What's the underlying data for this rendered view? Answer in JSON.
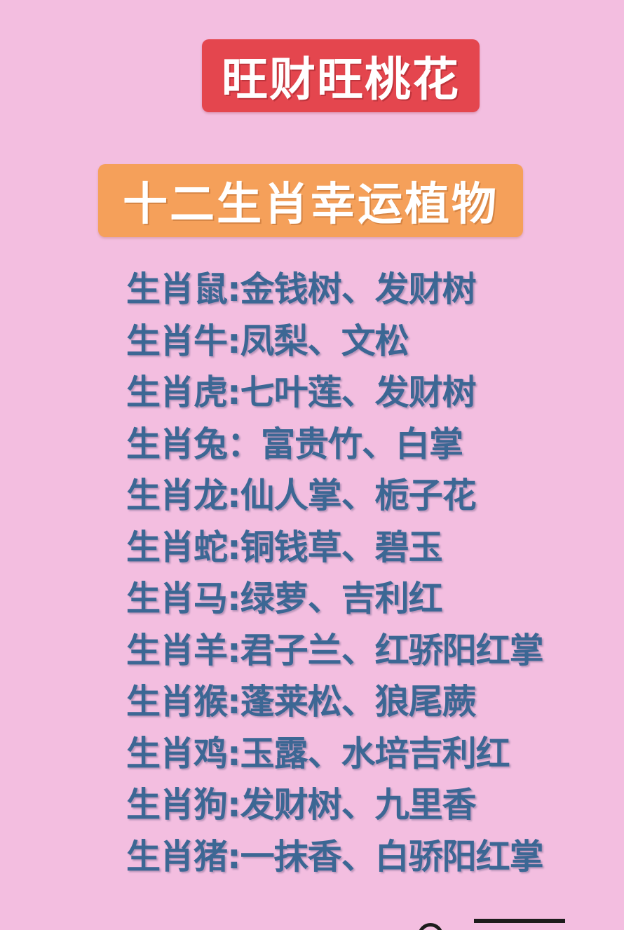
{
  "title": "旺财旺桃花",
  "subtitle": "十二生肖幸运植物",
  "zodiac_items": [
    "生肖鼠:金钱树、发财树",
    "生肖牛:凤梨、文松",
    "生肖虎:七叶莲、发财树",
    "生肖兔：富贵竹、白掌",
    "生肖龙:仙人掌、栀子花",
    "生肖蛇:铜钱草、碧玉",
    "生肖马:绿萝、吉利红",
    "生肖羊:君子兰、红骄阳红掌",
    "生肖猴:蓬莱松、狼尾蕨",
    "生肖鸡:玉露、水培吉利红",
    "生肖狗:发财树、九里香",
    "生肖猪:一抹香、白骄阳红掌"
  ],
  "colors": {
    "background": "#f3bee0",
    "title_badge": "#e4464e",
    "subtitle_badge": "#f5a05a",
    "list_text": "#3c6794"
  }
}
